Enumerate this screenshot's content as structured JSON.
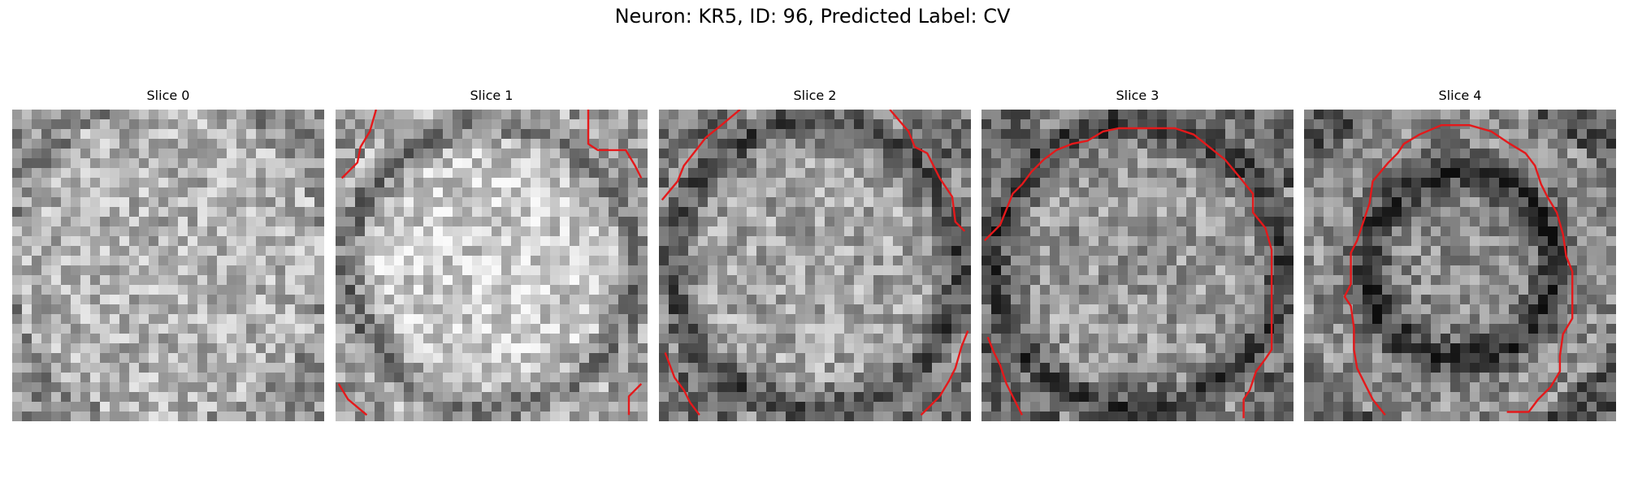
{
  "figure": {
    "title": "Neuron: KR5, ID: 96, Predicted Label: CV"
  },
  "panels": [
    {
      "title": "Slice 0",
      "brightness": 0.7,
      "contours": []
    },
    {
      "title": "Slice 1",
      "brightness": 0.8,
      "contours": [
        [
          [
            0.02,
            0.22
          ],
          [
            0.07,
            0.17
          ],
          [
            0.08,
            0.12
          ],
          [
            0.11,
            0.07
          ],
          [
            0.13,
            0.0
          ]
        ],
        [
          [
            0.81,
            0.0
          ],
          [
            0.81,
            0.11
          ],
          [
            0.84,
            0.13
          ],
          [
            0.93,
            0.13
          ],
          [
            0.96,
            0.18
          ],
          [
            0.98,
            0.22
          ]
        ],
        [
          [
            0.01,
            0.88
          ],
          [
            0.04,
            0.93
          ],
          [
            0.1,
            0.98
          ]
        ],
        [
          [
            0.94,
            0.98
          ],
          [
            0.94,
            0.92
          ],
          [
            0.98,
            0.88
          ]
        ]
      ]
    },
    {
      "title": "Slice 2",
      "brightness": 0.65,
      "contours": [
        [
          [
            0.01,
            0.29
          ],
          [
            0.06,
            0.23
          ],
          [
            0.08,
            0.18
          ],
          [
            0.15,
            0.09
          ],
          [
            0.2,
            0.05
          ],
          [
            0.26,
            0.0
          ]
        ],
        [
          [
            0.74,
            0.0
          ],
          [
            0.8,
            0.07
          ],
          [
            0.82,
            0.12
          ],
          [
            0.86,
            0.14
          ],
          [
            0.9,
            0.22
          ],
          [
            0.94,
            0.28
          ],
          [
            0.95,
            0.36
          ],
          [
            0.98,
            0.39
          ]
        ],
        [
          [
            0.02,
            0.78
          ],
          [
            0.05,
            0.86
          ],
          [
            0.08,
            0.9
          ],
          [
            0.1,
            0.94
          ],
          [
            0.13,
            0.98
          ]
        ],
        [
          [
            0.84,
            0.98
          ],
          [
            0.9,
            0.92
          ],
          [
            0.93,
            0.87
          ],
          [
            0.95,
            0.83
          ],
          [
            0.97,
            0.76
          ],
          [
            0.99,
            0.71
          ]
        ]
      ]
    },
    {
      "title": "Slice 3",
      "brightness": 0.6,
      "contours": [
        [
          [
            0.01,
            0.42
          ],
          [
            0.06,
            0.37
          ],
          [
            0.1,
            0.27
          ],
          [
            0.13,
            0.24
          ],
          [
            0.16,
            0.2
          ],
          [
            0.2,
            0.16
          ],
          [
            0.24,
            0.13
          ],
          [
            0.29,
            0.11
          ],
          [
            0.34,
            0.1
          ],
          [
            0.39,
            0.07
          ],
          [
            0.44,
            0.06
          ],
          [
            0.55,
            0.06
          ],
          [
            0.62,
            0.06
          ],
          [
            0.68,
            0.08
          ],
          [
            0.73,
            0.12
          ],
          [
            0.78,
            0.16
          ],
          [
            0.83,
            0.22
          ],
          [
            0.87,
            0.27
          ],
          [
            0.87,
            0.33
          ],
          [
            0.91,
            0.38
          ],
          [
            0.93,
            0.45
          ],
          [
            0.93,
            0.55
          ],
          [
            0.93,
            0.65
          ],
          [
            0.93,
            0.77
          ],
          [
            0.91,
            0.8
          ],
          [
            0.88,
            0.84
          ],
          [
            0.86,
            0.9
          ],
          [
            0.84,
            0.93
          ],
          [
            0.84,
            0.99
          ]
        ],
        [
          [
            0.02,
            0.73
          ],
          [
            0.04,
            0.78
          ],
          [
            0.06,
            0.82
          ],
          [
            0.08,
            0.88
          ],
          [
            0.11,
            0.94
          ],
          [
            0.13,
            0.98
          ]
        ]
      ]
    },
    {
      "title": "Slice 4",
      "brightness": 0.55,
      "contours": [
        [
          [
            0.65,
            0.97
          ],
          [
            0.72,
            0.97
          ],
          [
            0.75,
            0.93
          ],
          [
            0.79,
            0.89
          ],
          [
            0.82,
            0.84
          ],
          [
            0.82,
            0.79
          ],
          [
            0.83,
            0.72
          ],
          [
            0.86,
            0.67
          ],
          [
            0.86,
            0.58
          ],
          [
            0.86,
            0.52
          ],
          [
            0.84,
            0.47
          ],
          [
            0.83,
            0.4
          ],
          [
            0.81,
            0.33
          ],
          [
            0.78,
            0.28
          ],
          [
            0.76,
            0.24
          ],
          [
            0.74,
            0.18
          ],
          [
            0.71,
            0.14
          ],
          [
            0.66,
            0.11
          ],
          [
            0.6,
            0.07
          ],
          [
            0.53,
            0.05
          ],
          [
            0.44,
            0.05
          ],
          [
            0.37,
            0.08
          ],
          [
            0.32,
            0.11
          ],
          [
            0.3,
            0.14
          ],
          [
            0.27,
            0.17
          ],
          [
            0.22,
            0.23
          ],
          [
            0.21,
            0.3
          ],
          [
            0.19,
            0.36
          ],
          [
            0.17,
            0.42
          ],
          [
            0.15,
            0.46
          ],
          [
            0.15,
            0.56
          ],
          [
            0.13,
            0.6
          ],
          [
            0.15,
            0.63
          ],
          [
            0.16,
            0.7
          ],
          [
            0.16,
            0.77
          ],
          [
            0.17,
            0.83
          ],
          [
            0.2,
            0.89
          ],
          [
            0.22,
            0.93
          ],
          [
            0.26,
            0.98
          ]
        ]
      ]
    }
  ],
  "colors": {
    "contour": "#e4191b",
    "background": "#ffffff"
  }
}
